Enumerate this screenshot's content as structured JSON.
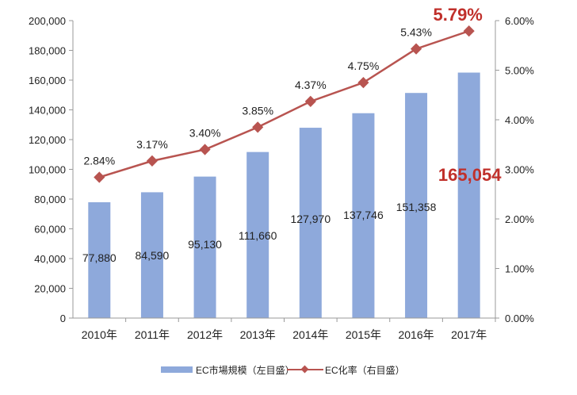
{
  "chart_data": {
    "type": "bar+line",
    "categories": [
      "2010年",
      "2011年",
      "2012年",
      "2013年",
      "2014年",
      "2015年",
      "2016年",
      "2017年"
    ],
    "series": [
      {
        "name": "EC市場規模（左目盛）",
        "type": "bar",
        "axis": "left",
        "color": "#8EA9DB",
        "values": [
          77880,
          84590,
          95130,
          111660,
          127970,
          137746,
          151358,
          165054
        ],
        "labels": [
          "77,880",
          "84,590",
          "95,130",
          "111,660",
          "127,970",
          "137,746",
          "151,358",
          "165,054"
        ]
      },
      {
        "name": "EC化率（右目盛）",
        "type": "line",
        "axis": "right",
        "color": "#B85450",
        "values": [
          2.84,
          3.17,
          3.4,
          3.85,
          4.37,
          4.75,
          5.43,
          5.79
        ],
        "labels": [
          "2.84%",
          "3.17%",
          "3.40%",
          "3.85%",
          "4.37%",
          "4.75%",
          "5.43%",
          "5.79%"
        ]
      }
    ],
    "highlight_color": "#C0302B",
    "y_left": {
      "lim": [
        0,
        200000
      ],
      "ticks": [
        "0",
        "20,000",
        "40,000",
        "60,000",
        "80,000",
        "100,000",
        "120,000",
        "140,000",
        "160,000",
        "180,000",
        "200,000"
      ]
    },
    "y_right": {
      "lim": [
        0,
        6
      ],
      "ticks": [
        "0.00%",
        "1.00%",
        "2.00%",
        "3.00%",
        "4.00%",
        "5.00%",
        "6.00%"
      ]
    },
    "grid": false,
    "legend": "bottom"
  }
}
